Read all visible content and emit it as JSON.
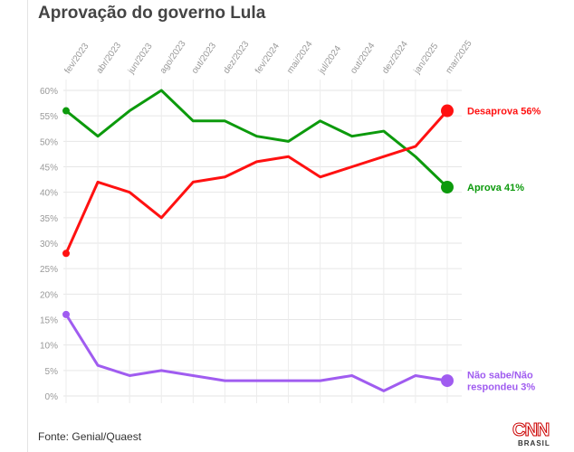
{
  "title": "Aprovação do governo Lula",
  "source": "Fonte: Genial/Quaest",
  "logo": {
    "main": "CNN",
    "sub": "BRASIL"
  },
  "chart_data": {
    "type": "line",
    "title": "Aprovação do governo Lula",
    "x": [
      "fev/2023",
      "abr/2023",
      "jun/2023",
      "ago/2023",
      "out/2023",
      "dez/2023",
      "fev/2024",
      "mai/2024",
      "jul/2024",
      "out/2024",
      "dez/2024",
      "jan/2025",
      "mar/2025"
    ],
    "ylim": [
      0,
      60
    ],
    "yticks": [
      "0%",
      "5%",
      "10%",
      "15%",
      "20%",
      "25%",
      "30%",
      "35%",
      "40%",
      "45%",
      "50%",
      "55%",
      "60%"
    ],
    "grid": true,
    "series": [
      {
        "name": "Aprova",
        "end_label": "Aprova 41%",
        "color": "#0c9a0c",
        "values": [
          56,
          51,
          56,
          60,
          54,
          54,
          51,
          50,
          54,
          51,
          52,
          47,
          41
        ]
      },
      {
        "name": "Desaprova",
        "end_label": "Desaprova 56%",
        "color": "#ff1111",
        "values": [
          28,
          42,
          40,
          35,
          42,
          43,
          46,
          47,
          43,
          45,
          47,
          49,
          56
        ]
      },
      {
        "name": "Não sabe/Não respondeu",
        "end_label": [
          "Não sabe/Não",
          "respondeu 3%"
        ],
        "color": "#a05cf0",
        "values": [
          16,
          6,
          4,
          5,
          4,
          3,
          3,
          3,
          3,
          4,
          1,
          4,
          3
        ]
      }
    ]
  }
}
